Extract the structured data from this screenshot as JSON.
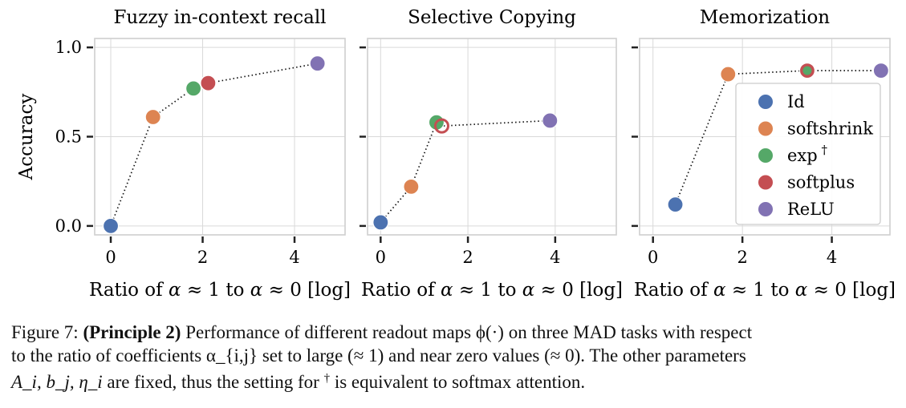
{
  "figure": {
    "ylabel": "Accuracy",
    "xlabel_parts": [
      "Ratio of ",
      "α",
      " ≈ 1 to ",
      "α",
      " ≈ 0 [log]"
    ],
    "yticks": [
      "0.0",
      "0.5",
      "1.0"
    ],
    "ytick_values": [
      0.0,
      0.5,
      1.0
    ],
    "xticks": [
      "0",
      "2",
      "4"
    ],
    "xtick_values": [
      0,
      2,
      4
    ],
    "colors": {
      "Id": "#4c72b0",
      "softshrink": "#dd8452",
      "exp": "#55a868",
      "softplus": "#c44e52",
      "ReLU": "#8172b3"
    }
  },
  "chart_data": [
    {
      "type": "scatter",
      "title": "Fuzzy in-context recall",
      "xlabel": "Ratio of α ≈ 1 to α ≈ 0 [log]",
      "ylabel": "Accuracy",
      "xlim": [
        -0.35,
        5.1
      ],
      "ylim": [
        -0.05,
        1.05
      ],
      "grid": true,
      "connector": "dotted line through points in ascending x",
      "series": [
        {
          "name": "Id",
          "x": 0.0,
          "y": 0.0
        },
        {
          "name": "softshrink",
          "x": 0.92,
          "y": 0.61
        },
        {
          "name": "exp †",
          "x": 1.8,
          "y": 0.77
        },
        {
          "name": "softplus",
          "x": 2.12,
          "y": 0.8
        },
        {
          "name": "ReLU",
          "x": 4.5,
          "y": 0.91
        }
      ]
    },
    {
      "type": "scatter",
      "title": "Selective Copying",
      "xlabel": "Ratio of α ≈ 1 to α ≈ 0 [log]",
      "ylabel": "",
      "xlim": [
        -0.3,
        5.4
      ],
      "ylim": [
        -0.05,
        1.05
      ],
      "grid": true,
      "connector": "dotted line through points in ascending x",
      "series": [
        {
          "name": "Id",
          "x": 0.0,
          "y": 0.02
        },
        {
          "name": "softshrink",
          "x": 0.7,
          "y": 0.22
        },
        {
          "name": "exp †",
          "x": 1.28,
          "y": 0.58
        },
        {
          "name": "softplus",
          "x": 1.4,
          "y": 0.56,
          "marker": "hollow"
        },
        {
          "name": "ReLU",
          "x": 3.88,
          "y": 0.59
        }
      ]
    },
    {
      "type": "scatter",
      "title": "Memorization",
      "xlabel": "Ratio of α ≈ 1 to α ≈ 0 [log]",
      "ylabel": "",
      "xlim": [
        -0.3,
        5.3
      ],
      "ylim": [
        -0.05,
        1.05
      ],
      "grid": true,
      "connector": "dotted line through points in ascending x",
      "legend": {
        "placement": "right",
        "entries": [
          "Id",
          "softshrink",
          "exp †",
          "softplus",
          "ReLU"
        ]
      },
      "series": [
        {
          "name": "Id",
          "x": 0.5,
          "y": 0.12
        },
        {
          "name": "softshrink",
          "x": 1.68,
          "y": 0.85
        },
        {
          "name": "exp †",
          "x": 3.45,
          "y": 0.87
        },
        {
          "name": "softplus",
          "x": 3.45,
          "y": 0.87
        },
        {
          "name": "ReLU",
          "x": 5.1,
          "y": 0.87
        }
      ]
    }
  ],
  "caption": {
    "label": "Figure 7:",
    "bold": "(Principle 2)",
    "line1_rest": " Performance of different readout maps ϕ(·) on three MAD tasks with respect",
    "line2": "to the ratio of coefficients α_{i,j} set to large (≈ 1) and near zero values (≈ 0). The other parameters",
    "line3_vars": "A_i, b_j, η_i",
    "line3_mid": " are fixed, thus the setting for ",
    "line3_dagger": "†",
    "line3_end": " is equivalent to softmax attention."
  }
}
